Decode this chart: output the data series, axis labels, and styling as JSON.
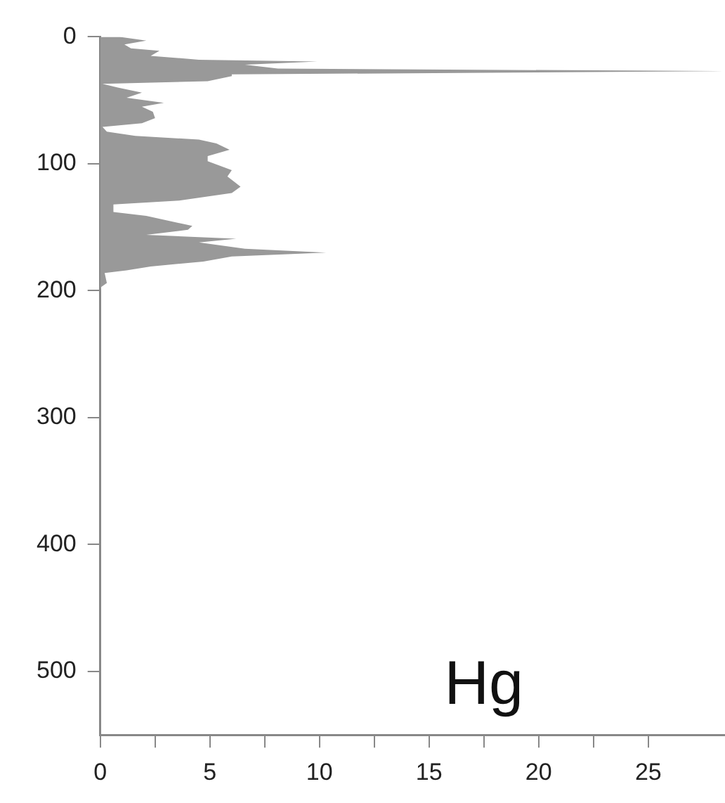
{
  "chart_data": {
    "type": "area",
    "orientation": "horizontal",
    "title": "Hg",
    "x": [
      0,
      3,
      6,
      9,
      11,
      15,
      18,
      19.5,
      22,
      25,
      27,
      29.6,
      31,
      35,
      37,
      40,
      44,
      48,
      52,
      55,
      59,
      64,
      68,
      71,
      74.7,
      78,
      81,
      84,
      89,
      94,
      98,
      105,
      110,
      118,
      123,
      129,
      132,
      138,
      141,
      149,
      152,
      156,
      159,
      162,
      167,
      170,
      173,
      177,
      181,
      184,
      186,
      194,
      197,
      200,
      530
    ],
    "series": [
      {
        "color": "#999999",
        "values": [
          0.9,
          2.1,
          1.1,
          1.4,
          2.7,
          2.3,
          4.5,
          9.9,
          6.6,
          8.1,
          28.4,
          6,
          6,
          4.9,
          0.1,
          0.8,
          1.9,
          1.2,
          2.9,
          1.9,
          2.4,
          2.5,
          1.9,
          0.1,
          0.3,
          1.6,
          4.5,
          5.3,
          5.9,
          4.9,
          4.9,
          6,
          5.8,
          6.4,
          6,
          3.6,
          0.6,
          0.6,
          2.1,
          4.2,
          4,
          2.1,
          6.2,
          4.5,
          6.6,
          10.3,
          6,
          4.7,
          2.3,
          1.2,
          0.2,
          0.3,
          0.05,
          0,
          0
        ]
      }
    ],
    "xlim": [
      0,
      28.5
    ],
    "xticks": [
      0,
      {
        "value": 2.5,
        "label": null
      },
      5,
      {
        "value": 7.5,
        "label": null
      },
      10,
      {
        "value": 12.5,
        "label": null
      },
      15,
      {
        "value": 17.5,
        "label": null
      },
      20,
      {
        "value": 22.5,
        "label": null
      },
      25
    ],
    "ylim": [
      550,
      0
    ],
    "yticks": [
      0,
      100,
      200,
      300,
      400,
      500
    ],
    "grid": false,
    "legend": false,
    "marker": "none"
  }
}
